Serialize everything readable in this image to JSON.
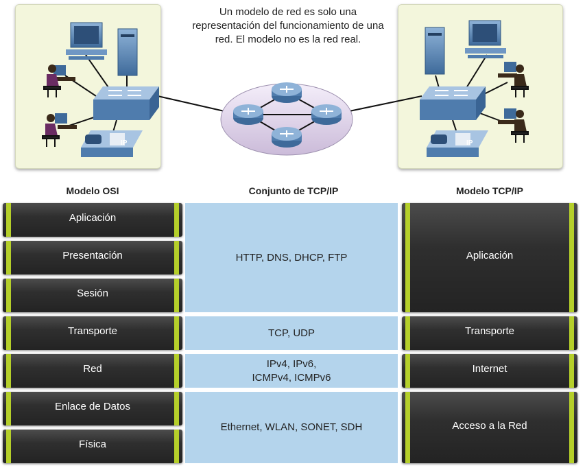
{
  "caption": "Un modelo de red es solo una representación del funcionamiento de una red. El modelo no es la red real.",
  "headers": {
    "osi": "Modelo OSI",
    "suite": "Conjunto de TCP/IP",
    "tcpip": "Modelo TCP/IP"
  },
  "osi_layers": [
    "Aplicación",
    "Presentación",
    "Sesión",
    "Transporte",
    "Red",
    "Enlace de Datos",
    "Física"
  ],
  "protocols": {
    "application": "HTTP, DNS, DHCP, FTP",
    "transport": "TCP, UDP",
    "network_line1": "IPv4, IPv6,",
    "network_line2": "ICMPv4, ICMPv6",
    "link": "Ethernet, WLAN, SONET, SDH"
  },
  "tcpip_layers": {
    "application": "Aplicación",
    "transport": "Transporte",
    "internet": "Internet",
    "access": "Acceso a la Red"
  },
  "phone_label": "IP",
  "colors": {
    "panel": "#f3f6dc",
    "layer_dark": "#2f2f2f",
    "accent_green": "#b5cf2a",
    "protocol_blue": "#b4d4ec",
    "device_blue": "#5b87b7"
  }
}
